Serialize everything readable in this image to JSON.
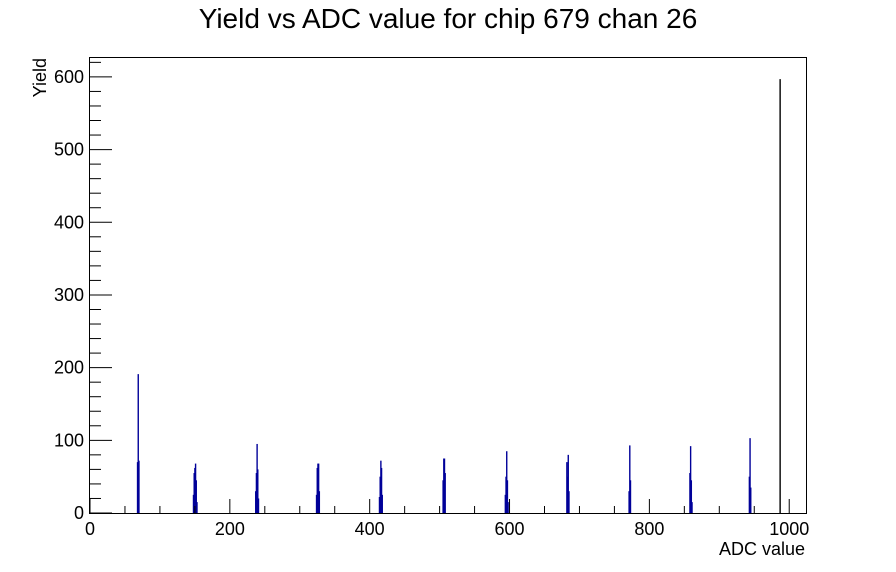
{
  "chart_data": {
    "type": "bar",
    "title": "Yield vs ADC value for chip 679 chan 26",
    "xlabel": "ADC value",
    "ylabel": "Yield",
    "xlim": [
      0,
      1024
    ],
    "ylim": [
      0,
      626
    ],
    "x_ticks": [
      0,
      200,
      400,
      600,
      800,
      1000
    ],
    "y_ticks": [
      0,
      100,
      200,
      300,
      400,
      500,
      600
    ],
    "grid": false,
    "legend": "none",
    "line_color": "#000099",
    "points": [
      {
        "x": 68,
        "y": 70
      },
      {
        "x": 69,
        "y": 191
      },
      {
        "x": 70,
        "y": 72
      },
      {
        "x": 148,
        "y": 25
      },
      {
        "x": 149,
        "y": 55
      },
      {
        "x": 150,
        "y": 62
      },
      {
        "x": 151,
        "y": 68
      },
      {
        "x": 152,
        "y": 45
      },
      {
        "x": 153,
        "y": 15
      },
      {
        "x": 237,
        "y": 30
      },
      {
        "x": 238,
        "y": 55
      },
      {
        "x": 239,
        "y": 95
      },
      {
        "x": 240,
        "y": 60
      },
      {
        "x": 241,
        "y": 20
      },
      {
        "x": 324,
        "y": 25
      },
      {
        "x": 325,
        "y": 62
      },
      {
        "x": 326,
        "y": 68
      },
      {
        "x": 327,
        "y": 68
      },
      {
        "x": 328,
        "y": 30
      },
      {
        "x": 414,
        "y": 22
      },
      {
        "x": 415,
        "y": 50
      },
      {
        "x": 416,
        "y": 72
      },
      {
        "x": 417,
        "y": 62
      },
      {
        "x": 418,
        "y": 25
      },
      {
        "x": 505,
        "y": 45
      },
      {
        "x": 506,
        "y": 75
      },
      {
        "x": 507,
        "y": 75
      },
      {
        "x": 508,
        "y": 55
      },
      {
        "x": 594,
        "y": 25
      },
      {
        "x": 595,
        "y": 50
      },
      {
        "x": 596,
        "y": 85
      },
      {
        "x": 597,
        "y": 45
      },
      {
        "x": 598,
        "y": 15
      },
      {
        "x": 682,
        "y": 70
      },
      {
        "x": 683,
        "y": 50
      },
      {
        "x": 684,
        "y": 80
      },
      {
        "x": 685,
        "y": 30
      },
      {
        "x": 771,
        "y": 30
      },
      {
        "x": 772,
        "y": 93
      },
      {
        "x": 773,
        "y": 45
      },
      {
        "x": 858,
        "y": 55
      },
      {
        "x": 859,
        "y": 92
      },
      {
        "x": 860,
        "y": 45
      },
      {
        "x": 861,
        "y": 15
      },
      {
        "x": 943,
        "y": 50
      },
      {
        "x": 944,
        "y": 103
      },
      {
        "x": 945,
        "y": 35
      },
      {
        "x": 987,
        "y": 597
      }
    ]
  }
}
